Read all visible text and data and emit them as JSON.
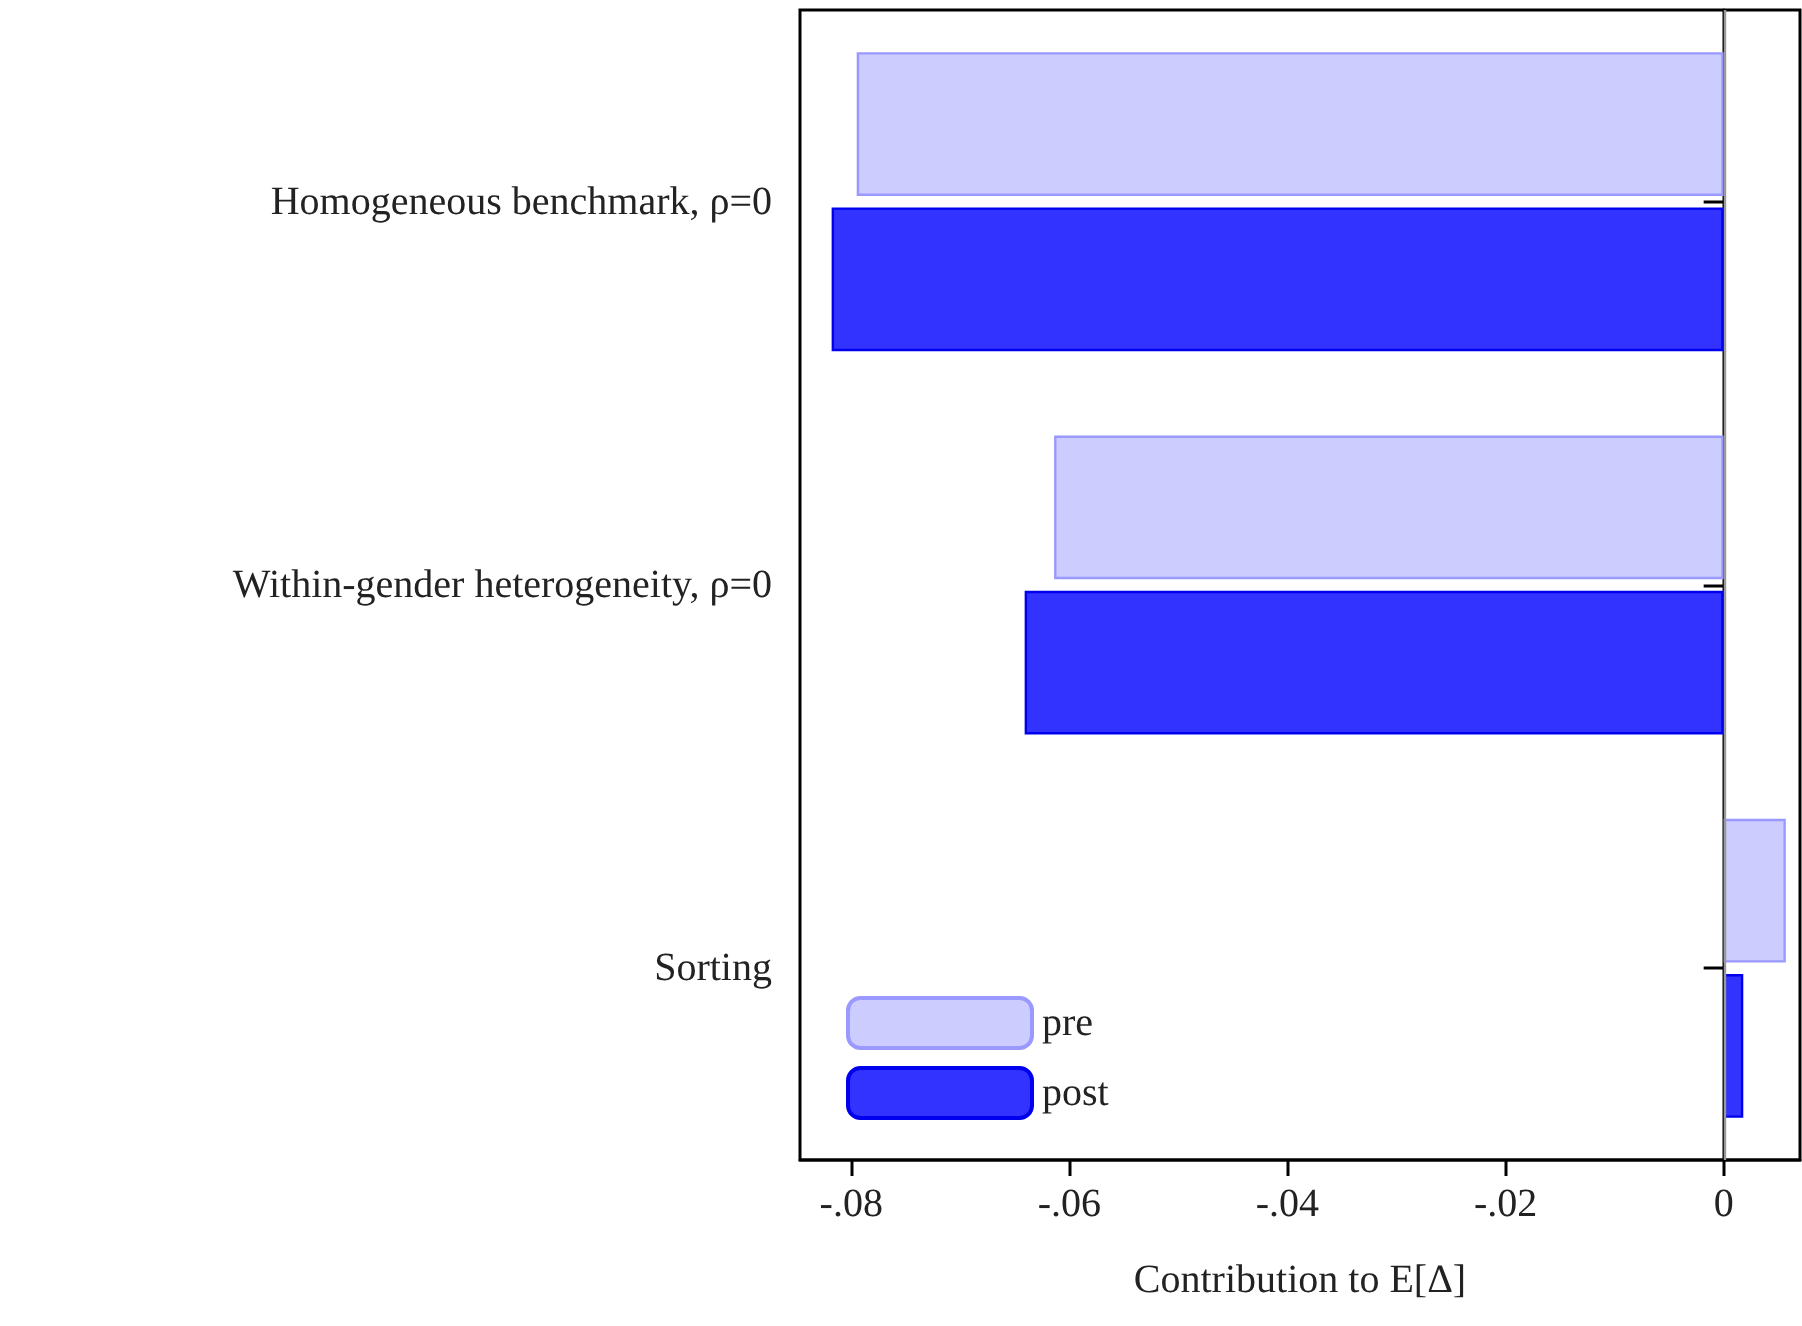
{
  "chart_data": {
    "type": "bar",
    "orientation": "horizontal",
    "xlabel": "Contribution to E[Δ]",
    "categories": [
      "Homogeneous benchmark, ρ=0",
      "Within-gender heterogeneity, ρ=0",
      "Sorting"
    ],
    "series": [
      {
        "name": "pre",
        "color": "#ccccff",
        "values": [
          -0.0795,
          -0.0614,
          0.0057
        ]
      },
      {
        "name": "post",
        "color": "#3333ff",
        "values": [
          -0.0818,
          -0.0641,
          0.0018
        ]
      }
    ],
    "xlim": [
      -0.0847,
      0.007
    ],
    "xticks": [
      {
        "value": -0.08,
        "label": "-.08"
      },
      {
        "value": -0.06,
        "label": "-.06"
      },
      {
        "value": -0.04,
        "label": "-.04"
      },
      {
        "value": -0.02,
        "label": "-.02"
      },
      0
    ],
    "ref_lines": [
      {
        "axis": "x",
        "value": 0,
        "color": "#999999"
      }
    ],
    "grid": false,
    "legend": "bottom left"
  }
}
